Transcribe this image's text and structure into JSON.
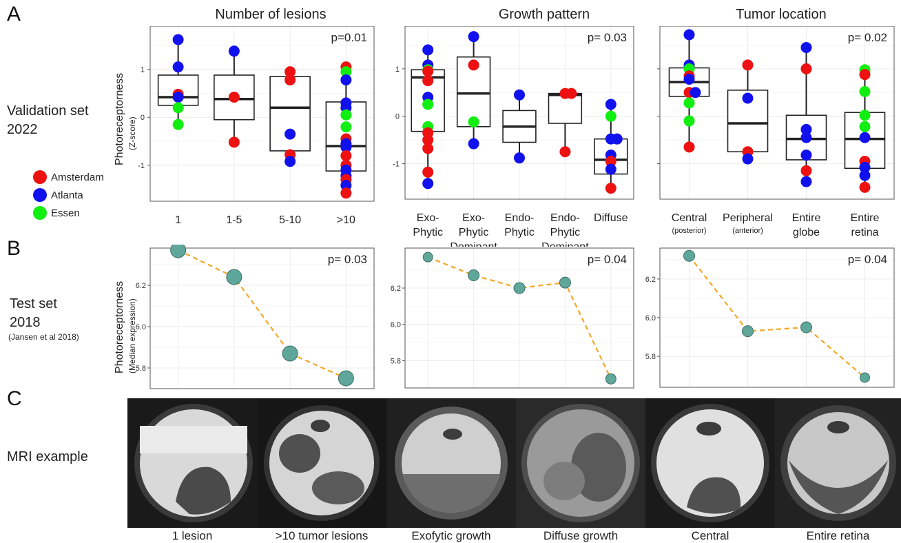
{
  "panels": {
    "A": "A",
    "B": "B",
    "C": "C"
  },
  "rows": {
    "validation": {
      "line1": "Validation set",
      "line2": "2022"
    },
    "test": {
      "line1": "Test set",
      "line2": "2018",
      "citation": "(Jansen et al 2018)"
    },
    "mri": "MRI example"
  },
  "legend": [
    {
      "label": "Amsterdam",
      "color": "#ee1111"
    },
    {
      "label": "Atlanta",
      "color": "#1111ee"
    },
    {
      "label": "Essen",
      "color": "#11ee11"
    }
  ],
  "axis_labels": {
    "a_y": "Photoreceptorness",
    "a_y_sub": "(Z-score)",
    "b_y": "Photoreceptorness",
    "b_y_sub": "(Median expression)"
  },
  "columns": [
    {
      "title": "Number of lesions"
    },
    {
      "title": "Growth pattern"
    },
    {
      "title": "Tumor location"
    }
  ],
  "chart_data": [
    {
      "type": "box",
      "title": "Number of lesions",
      "pvalue": "p=0.01",
      "categories": [
        [
          "1"
        ],
        [
          "1-5"
        ],
        [
          "5-10"
        ],
        [
          ">10"
        ]
      ],
      "yticks": [
        "1",
        "0",
        "-1"
      ],
      "ylim": [
        -1.75,
        1.9
      ],
      "boxes": [
        {
          "q1": 0.25,
          "median": 0.42,
          "q3": 0.88,
          "lo": -0.15,
          "hi": 1.6
        },
        {
          "q1": -0.05,
          "median": 0.38,
          "q3": 0.88,
          "lo": -0.52,
          "hi": 1.3
        },
        {
          "q1": -0.7,
          "median": 0.2,
          "q3": 0.85,
          "lo": -0.92,
          "hi": 0.95
        },
        {
          "q1": -1.12,
          "median": -0.6,
          "q3": 0.32,
          "lo": -1.6,
          "hi": 1.05
        }
      ],
      "points": [
        {
          "x": 0,
          "y": 1.62,
          "site": "Atlanta"
        },
        {
          "x": 0,
          "y": 1.05,
          "site": "Atlanta"
        },
        {
          "x": 0,
          "y": 0.48,
          "site": "Amsterdam"
        },
        {
          "x": 0,
          "y": 0.42,
          "site": "Atlanta"
        },
        {
          "x": 0,
          "y": 0.2,
          "site": "Essen"
        },
        {
          "x": 0,
          "y": -0.15,
          "site": "Essen"
        },
        {
          "x": 1,
          "y": 1.38,
          "site": "Atlanta"
        },
        {
          "x": 1,
          "y": 0.42,
          "site": "Amsterdam"
        },
        {
          "x": 1,
          "y": -0.52,
          "site": "Amsterdam"
        },
        {
          "x": 2,
          "y": 0.95,
          "site": "Amsterdam"
        },
        {
          "x": 2,
          "y": 0.78,
          "site": "Amsterdam"
        },
        {
          "x": 2,
          "y": -0.35,
          "site": "Atlanta"
        },
        {
          "x": 2,
          "y": -0.78,
          "site": "Amsterdam"
        },
        {
          "x": 2,
          "y": -0.92,
          "site": "Atlanta"
        },
        {
          "x": 3,
          "y": 1.05,
          "site": "Amsterdam"
        },
        {
          "x": 3,
          "y": 0.95,
          "site": "Essen"
        },
        {
          "x": 3,
          "y": 0.78,
          "site": "Atlanta"
        },
        {
          "x": 3,
          "y": 0.3,
          "site": "Atlanta"
        },
        {
          "x": 3,
          "y": 0.2,
          "site": "Atlanta"
        },
        {
          "x": 3,
          "y": 0.05,
          "site": "Essen"
        },
        {
          "x": 3,
          "y": -0.2,
          "site": "Essen"
        },
        {
          "x": 3,
          "y": -0.45,
          "site": "Amsterdam"
        },
        {
          "x": 3,
          "y": -0.55,
          "site": "Atlanta"
        },
        {
          "x": 3,
          "y": -0.62,
          "site": "Atlanta"
        },
        {
          "x": 3,
          "y": -0.8,
          "site": "Amsterdam"
        },
        {
          "x": 3,
          "y": -1.0,
          "site": "Amsterdam"
        },
        {
          "x": 3,
          "y": -1.1,
          "site": "Atlanta"
        },
        {
          "x": 3,
          "y": -1.22,
          "site": "Atlanta"
        },
        {
          "x": 3,
          "y": -1.3,
          "site": "Amsterdam"
        },
        {
          "x": 3,
          "y": -1.42,
          "site": "Atlanta"
        },
        {
          "x": 3,
          "y": -1.58,
          "site": "Amsterdam"
        }
      ]
    },
    {
      "type": "box",
      "title": "Growth pattern",
      "pvalue": "p= 0.03",
      "categories": [
        [
          "Exo-",
          "Phytic"
        ],
        [
          "Exo-",
          "Phytic",
          "Dominant"
        ],
        [
          "Endo-",
          "Phytic"
        ],
        [
          "Endo-",
          "Phytic",
          "Dominant"
        ],
        [
          "Diffuse"
        ]
      ],
      "yticks": [
        "1",
        "0",
        "-1"
      ],
      "ylim": [
        -1.75,
        1.9
      ],
      "boxes": [
        {
          "q1": -0.32,
          "median": 0.82,
          "q3": 0.98,
          "lo": -1.42,
          "hi": 1.4
        },
        {
          "q1": -0.22,
          "median": 0.48,
          "q3": 1.25,
          "lo": -0.58,
          "hi": 1.68
        },
        {
          "q1": -0.55,
          "median": -0.22,
          "q3": 0.12,
          "lo": -0.88,
          "hi": 0.45
        },
        {
          "q1": -0.15,
          "median": 0.45,
          "q3": 0.48,
          "lo": -0.75,
          "hi": 0.48
        },
        {
          "q1": -1.22,
          "median": -0.92,
          "q3": -0.48,
          "lo": -1.52,
          "hi": 0.25
        }
      ],
      "points": [
        {
          "x": 0,
          "y": 1.4,
          "site": "Atlanta"
        },
        {
          "x": 0,
          "y": 1.08,
          "site": "Atlanta"
        },
        {
          "x": 0,
          "y": 0.98,
          "site": "Essen"
        },
        {
          "x": 0,
          "y": 0.95,
          "site": "Amsterdam"
        },
        {
          "x": 0,
          "y": 0.75,
          "site": "Amsterdam"
        },
        {
          "x": 0,
          "y": 0.4,
          "site": "Atlanta"
        },
        {
          "x": 0,
          "y": 0.25,
          "site": "Essen"
        },
        {
          "x": 0,
          "y": -0.22,
          "site": "Essen"
        },
        {
          "x": 0,
          "y": -0.35,
          "site": "Amsterdam"
        },
        {
          "x": 0,
          "y": -0.5,
          "site": "Amsterdam"
        },
        {
          "x": 0,
          "y": -0.68,
          "site": "Amsterdam"
        },
        {
          "x": 0,
          "y": -1.18,
          "site": "Amsterdam"
        },
        {
          "x": 0,
          "y": -1.42,
          "site": "Atlanta"
        },
        {
          "x": 1,
          "y": 1.68,
          "site": "Atlanta"
        },
        {
          "x": 1,
          "y": 1.08,
          "site": "Amsterdam"
        },
        {
          "x": 1,
          "y": -0.12,
          "site": "Essen"
        },
        {
          "x": 1,
          "y": -0.58,
          "site": "Atlanta"
        },
        {
          "x": 2,
          "y": 0.45,
          "site": "Atlanta"
        },
        {
          "x": 2,
          "y": -0.88,
          "site": "Atlanta"
        },
        {
          "x": 3,
          "y": 0.48,
          "site": "Amsterdam"
        },
        {
          "x": 3,
          "y": 0.48,
          "site": "Amsterdam"
        },
        {
          "x": 3,
          "y": -0.75,
          "site": "Amsterdam"
        },
        {
          "x": 4,
          "y": 0.25,
          "site": "Atlanta"
        },
        {
          "x": 4,
          "y": 0.0,
          "site": "Essen"
        },
        {
          "x": 4,
          "y": -0.48,
          "site": "Atlanta"
        },
        {
          "x": 4,
          "y": -0.48,
          "site": "Atlanta"
        },
        {
          "x": 4,
          "y": -0.82,
          "site": "Atlanta"
        },
        {
          "x": 4,
          "y": -0.95,
          "site": "Amsterdam"
        },
        {
          "x": 4,
          "y": -1.12,
          "site": "Atlanta"
        },
        {
          "x": 4,
          "y": -1.52,
          "site": "Amsterdam"
        }
      ]
    },
    {
      "type": "box",
      "title": "Tumor location",
      "pvalue": "p= 0.02",
      "categories": [
        [
          "Central",
          "(posterior)"
        ],
        [
          "Peripheral",
          "(anterior)"
        ],
        [
          "Entire",
          "globe"
        ],
        [
          "Entire",
          "retina"
        ]
      ],
      "yticks": [
        "",
        "",
        ""
      ],
      "ylim": [
        -1.75,
        1.9
      ],
      "boxes": [
        {
          "q1": 0.42,
          "median": 0.72,
          "q3": 1.02,
          "lo": -0.65,
          "hi": 1.72
        },
        {
          "q1": -0.75,
          "median": -0.15,
          "q3": 0.55,
          "lo": -0.9,
          "hi": 1.08
        },
        {
          "q1": -0.92,
          "median": -0.48,
          "q3": 0.02,
          "lo": -1.38,
          "hi": 1.45
        },
        {
          "q1": -1.1,
          "median": -0.48,
          "q3": 0.08,
          "lo": -1.5,
          "hi": 0.98
        }
      ],
      "points": [
        {
          "x": 0,
          "y": 1.72,
          "site": "Atlanta"
        },
        {
          "x": 0,
          "y": 1.08,
          "site": "Atlanta"
        },
        {
          "x": 0,
          "y": 1.02,
          "site": "Atlanta"
        },
        {
          "x": 0,
          "y": 1.0,
          "site": "Essen"
        },
        {
          "x": 0,
          "y": 0.85,
          "site": "Amsterdam"
        },
        {
          "x": 0,
          "y": 0.78,
          "site": "Atlanta"
        },
        {
          "x": 0,
          "y": 0.5,
          "site": "Amsterdam"
        },
        {
          "x": 0,
          "y": 0.5,
          "site": "Atlanta"
        },
        {
          "x": 0,
          "y": 0.28,
          "site": "Essen"
        },
        {
          "x": 0,
          "y": -0.1,
          "site": "Essen"
        },
        {
          "x": 0,
          "y": -0.65,
          "site": "Amsterdam"
        },
        {
          "x": 1,
          "y": 1.08,
          "site": "Amsterdam"
        },
        {
          "x": 1,
          "y": 0.38,
          "site": "Atlanta"
        },
        {
          "x": 1,
          "y": -0.75,
          "site": "Amsterdam"
        },
        {
          "x": 1,
          "y": -0.9,
          "site": "Atlanta"
        },
        {
          "x": 2,
          "y": 1.45,
          "site": "Atlanta"
        },
        {
          "x": 2,
          "y": 1.0,
          "site": "Amsterdam"
        },
        {
          "x": 2,
          "y": -0.28,
          "site": "Atlanta"
        },
        {
          "x": 2,
          "y": -0.45,
          "site": "Atlanta"
        },
        {
          "x": 2,
          "y": -0.82,
          "site": "Atlanta"
        },
        {
          "x": 2,
          "y": -1.15,
          "site": "Amsterdam"
        },
        {
          "x": 2,
          "y": -1.38,
          "site": "Atlanta"
        },
        {
          "x": 3,
          "y": 0.98,
          "site": "Essen"
        },
        {
          "x": 3,
          "y": 0.88,
          "site": "Amsterdam"
        },
        {
          "x": 3,
          "y": 0.52,
          "site": "Essen"
        },
        {
          "x": 3,
          "y": 0.02,
          "site": "Essen"
        },
        {
          "x": 3,
          "y": -0.22,
          "site": "Essen"
        },
        {
          "x": 3,
          "y": -0.45,
          "site": "Atlanta"
        },
        {
          "x": 3,
          "y": -0.95,
          "site": "Amsterdam"
        },
        {
          "x": 3,
          "y": -1.08,
          "site": "Atlanta"
        },
        {
          "x": 3,
          "y": -1.25,
          "site": "Atlanta"
        },
        {
          "x": 3,
          "y": -1.5,
          "site": "Amsterdam"
        }
      ]
    },
    {
      "type": "line",
      "pvalue": "p= 0.03",
      "x_count": 4,
      "values": [
        6.37,
        6.24,
        5.87,
        5.75
      ],
      "yticks": [
        6.2,
        6.0,
        5.8
      ],
      "ylim": [
        5.7,
        6.38
      ],
      "sizes": [
        22,
        22,
        22,
        22
      ]
    },
    {
      "type": "line",
      "pvalue": "p= 0.04",
      "x_count": 5,
      "values": [
        6.37,
        6.27,
        6.2,
        6.23,
        5.7
      ],
      "yticks": [
        6.2,
        6.0,
        5.8
      ],
      "ylim": [
        5.65,
        6.42
      ],
      "sizes": [
        14,
        16,
        16,
        16,
        15
      ]
    },
    {
      "type": "line",
      "pvalue": "p= 0.04",
      "x_count": 4,
      "values": [
        6.32,
        5.93,
        5.95,
        5.69
      ],
      "yticks": [
        6.2,
        6.0,
        5.8
      ],
      "ylim": [
        5.64,
        6.36
      ],
      "sizes": [
        16,
        16,
        16,
        14
      ]
    }
  ],
  "mri": {
    "captions": [
      "1 lesion",
      ">10 tumor lesions",
      "Exofytic growth",
      "Diffuse growth",
      "Central",
      "Entire retina"
    ]
  }
}
